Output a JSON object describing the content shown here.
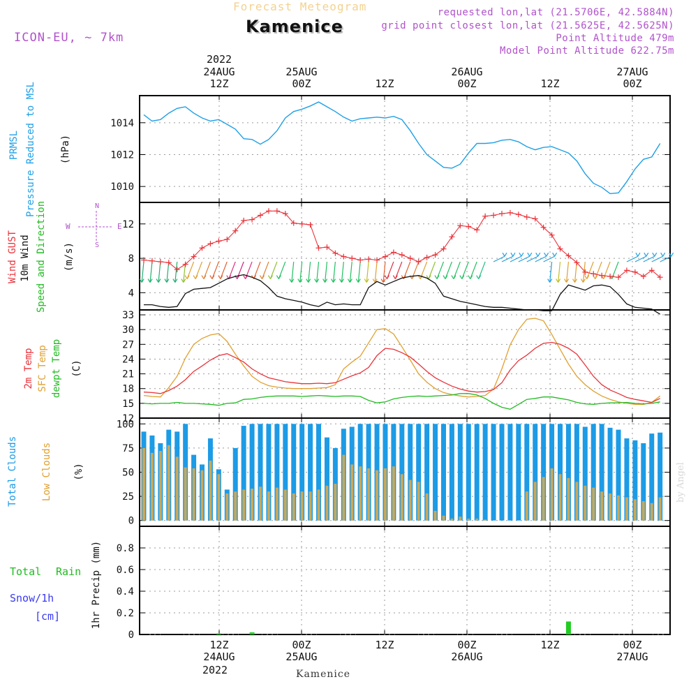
{
  "header": {
    "title": "Kamenice",
    "faded_title": "Forecast Meteogram",
    "model": "ICON-EU, ~ 7km",
    "requested": "requested lon,lat (21.5706E, 42.5884N)",
    "grid": "grid point closest lon,lat (21.5625E, 42.5625N)",
    "point_alt": "Point Altitude 479m",
    "model_alt": "Model Point Altitude 622.75m"
  },
  "top_axis": {
    "year": "2022",
    "labels": [
      {
        "top": "24AUG",
        "bottom": "12Z"
      },
      {
        "top": "25AUG",
        "bottom": "00Z"
      },
      {
        "top": "",
        "bottom": "12Z"
      },
      {
        "top": "26AUG",
        "bottom": "00Z"
      },
      {
        "top": "",
        "bottom": "12Z"
      },
      {
        "top": "27AUG",
        "bottom": "00Z"
      }
    ]
  },
  "bottom_axis": {
    "year": "2022",
    "labels": [
      {
        "top": "12Z",
        "bottom": "24AUG"
      },
      {
        "top": "00Z",
        "bottom": "25AUG"
      },
      {
        "top": "12Z",
        "bottom": ""
      },
      {
        "top": "00Z",
        "bottom": "26AUG"
      },
      {
        "top": "12Z",
        "bottom": ""
      },
      {
        "top": "00Z",
        "bottom": "27AUG"
      }
    ]
  },
  "footer": {
    "location": "Kamenice",
    "credit": "by Angel"
  },
  "panel_labels": {
    "pressure": {
      "a": "PRMSL",
      "b": "Pressure Reduced to MSL",
      "unit": "(hPa)"
    },
    "wind": {
      "a": "Wind GUST",
      "b": "10m Wind",
      "c": "Speed and Direction",
      "unit": "(m/s)",
      "compass_ns": "N",
      "compass_s": "S",
      "compass_w": "W",
      "compass_e": "E"
    },
    "temp": {
      "a": "2m Temp",
      "b": "SFC Temp",
      "c": "dewpt Temp",
      "unit": "(C)"
    },
    "clouds": {
      "a": "Total Clouds",
      "b": "Low Clouds",
      "unit": "(%)"
    },
    "precip": {
      "a": "Total",
      "b": "Rain",
      "c": "Snow/1h",
      "d": "[cm]",
      "unit": "1hr Precip (mm)"
    }
  },
  "colors": {
    "pressure": "#1ea0e6",
    "gust": "#e8333a",
    "wind": "#111111",
    "temp2m": "#e8333a",
    "sfc": "#e0a030",
    "dewpt": "#22bb22",
    "total_cloud": "#1c9be6",
    "low_cloud": "#c9a85a",
    "rain": "#22cc22",
    "snow": "#3a3aee",
    "purple": "#b152cc"
  },
  "chart_data": [
    {
      "type": "line",
      "panel": "pressure",
      "ylabel": "(hPa)",
      "ylim": [
        1009,
        1015.7
      ],
      "yticks": [
        1010,
        1012,
        1014
      ],
      "x_hours": [
        0,
        1,
        2,
        3,
        4,
        5,
        6,
        7,
        8,
        9,
        10,
        11,
        12,
        13,
        14,
        15,
        16,
        17,
        18,
        19,
        20,
        21,
        22,
        23,
        24,
        25,
        26,
        27,
        28,
        29,
        30,
        31,
        32,
        33,
        34,
        35,
        36,
        37,
        38,
        39,
        40,
        41,
        42,
        43,
        44,
        45,
        46,
        47,
        48,
        49,
        50,
        51,
        52,
        53,
        54,
        55,
        56,
        57,
        58,
        59,
        60,
        61,
        62
      ],
      "series": [
        {
          "name": "PRMSL",
          "values": [
            1014.5,
            1014.1,
            1014.2,
            1014.6,
            1014.9,
            1015.0,
            1014.6,
            1014.3,
            1014.1,
            1014.2,
            1013.9,
            1013.6,
            1013.0,
            1012.95,
            1012.65,
            1012.95,
            1013.5,
            1014.3,
            1014.7,
            1014.85,
            1015.05,
            1015.3,
            1015.0,
            1014.7,
            1014.35,
            1014.1,
            1014.25,
            1014.3,
            1014.35,
            1014.3,
            1014.4,
            1014.2,
            1013.5,
            1012.7,
            1012.0,
            1011.6,
            1011.2,
            1011.15,
            1011.4,
            1012.1,
            1012.7,
            1012.7,
            1012.75,
            1012.9,
            1012.95,
            1012.8,
            1012.5,
            1012.3,
            1012.45,
            1012.5,
            1012.3,
            1012.1,
            1011.6,
            1010.8,
            1010.2,
            1009.95,
            1009.55,
            1009.6,
            1010.3,
            1011.1,
            1011.7,
            1011.85,
            1012.7
          ]
        }
      ]
    },
    {
      "type": "line",
      "panel": "wind",
      "ylabel": "(m/s)",
      "ylim": [
        2,
        14.5
      ],
      "yticks": [
        4,
        8,
        12
      ],
      "x_hours": [
        0,
        1,
        2,
        3,
        4,
        5,
        6,
        7,
        8,
        9,
        10,
        11,
        12,
        13,
        14,
        15,
        16,
        17,
        18,
        19,
        20,
        21,
        22,
        23,
        24,
        25,
        26,
        27,
        28,
        29,
        30,
        31,
        32,
        33,
        34,
        35,
        36,
        37,
        38,
        39,
        40,
        41,
        42,
        43,
        44,
        45,
        46,
        47,
        48,
        49,
        50,
        51,
        52,
        53,
        54,
        55,
        56,
        57,
        58,
        59,
        60,
        61,
        62
      ],
      "series": [
        {
          "name": "Wind GUST",
          "values": [
            7.8,
            7.7,
            7.6,
            7.5,
            6.7,
            7.3,
            8.2,
            9.2,
            9.7,
            10.0,
            10.2,
            11.2,
            12.4,
            12.5,
            13.0,
            13.5,
            13.5,
            13.2,
            12.1,
            12.0,
            11.9,
            9.2,
            9.3,
            8.6,
            8.2,
            8.0,
            7.8,
            7.9,
            7.8,
            8.2,
            8.7,
            8.4,
            8.0,
            7.6,
            8.1,
            8.4,
            9.1,
            10.5,
            11.8,
            11.7,
            11.3,
            12.9,
            13.0,
            13.2,
            13.3,
            13.1,
            12.8,
            12.6,
            11.6,
            10.7,
            9.1,
            8.3,
            7.5,
            6.4,
            6.2,
            6.0,
            5.9,
            5.8,
            6.6,
            6.4,
            5.9,
            6.6,
            5.8
          ]
        },
        {
          "name": "10m Wind",
          "values": [
            2.6,
            2.6,
            2.4,
            2.3,
            2.4,
            3.9,
            4.4,
            4.5,
            4.6,
            5.1,
            5.6,
            5.9,
            6.1,
            5.8,
            5.4,
            4.6,
            3.6,
            3.3,
            3.1,
            2.9,
            2.6,
            2.4,
            2.9,
            2.6,
            2.7,
            2.6,
            2.6,
            4.6,
            5.3,
            4.9,
            5.3,
            5.7,
            5.9,
            6.0,
            5.7,
            5.1,
            3.6,
            3.3,
            3.0,
            2.8,
            2.6,
            2.4,
            2.3,
            2.3,
            2.2,
            2.1,
            2.0,
            2.0,
            1.9,
            1.9,
            3.8,
            4.9,
            4.6,
            4.3,
            4.8,
            4.9,
            4.7,
            3.8,
            2.7,
            2.3,
            2.2,
            2.1,
            1.5
          ]
        }
      ],
      "direction_note": "arrows show wind direction; colored by speed"
    },
    {
      "type": "line",
      "panel": "temp",
      "ylabel": "(C)",
      "ylim": [
        12,
        34
      ],
      "yticks": [
        12,
        15,
        18,
        21,
        24,
        27,
        30,
        33
      ],
      "x_hours": [
        0,
        1,
        2,
        3,
        4,
        5,
        6,
        7,
        8,
        9,
        10,
        11,
        12,
        13,
        14,
        15,
        16,
        17,
        18,
        19,
        20,
        21,
        22,
        23,
        24,
        25,
        26,
        27,
        28,
        29,
        30,
        31,
        32,
        33,
        34,
        35,
        36,
        37,
        38,
        39,
        40,
        41,
        42,
        43,
        44,
        45,
        46,
        47,
        48,
        49,
        50,
        51,
        52,
        53,
        54,
        55,
        56,
        57,
        58,
        59,
        60,
        61,
        62
      ],
      "series": [
        {
          "name": "2m Temp",
          "values": [
            17.3,
            17.2,
            17.0,
            17.6,
            18.5,
            19.8,
            21.5,
            22.6,
            23.8,
            24.7,
            25.1,
            24.3,
            23.4,
            22.0,
            21.0,
            20.2,
            19.8,
            19.4,
            19.2,
            19.0,
            19.0,
            19.1,
            19.0,
            19.2,
            19.9,
            20.6,
            21.2,
            22.3,
            24.7,
            26.2,
            26.0,
            25.3,
            24.4,
            23.0,
            21.5,
            20.2,
            19.3,
            18.5,
            17.9,
            17.5,
            17.3,
            17.4,
            17.8,
            19.2,
            21.8,
            23.7,
            24.8,
            26.2,
            27.2,
            27.4,
            27.0,
            26.2,
            25.0,
            22.8,
            20.5,
            18.8,
            17.7,
            17.0,
            16.2,
            15.8,
            15.5,
            15.2,
            16.0
          ]
        },
        {
          "name": "SFC Temp",
          "values": [
            16.6,
            16.4,
            16.3,
            18.2,
            20.5,
            24.2,
            27.0,
            28.2,
            28.9,
            29.2,
            27.6,
            25.0,
            22.6,
            20.5,
            19.3,
            18.6,
            18.3,
            18.1,
            18.0,
            18.0,
            18.0,
            18.1,
            18.2,
            18.8,
            22.0,
            23.4,
            24.6,
            27.3,
            30.0,
            30.2,
            29.1,
            26.5,
            23.8,
            21.0,
            19.3,
            18.0,
            17.2,
            16.8,
            16.5,
            16.3,
            16.4,
            16.6,
            17.9,
            22.0,
            26.9,
            30.0,
            32.1,
            32.3,
            31.8,
            29.0,
            26.0,
            23.0,
            20.5,
            18.8,
            17.5,
            16.5,
            15.8,
            15.3,
            15.0,
            14.8,
            14.8,
            15.2,
            16.5
          ]
        },
        {
          "name": "dewpt Temp",
          "values": [
            15.0,
            14.9,
            15.0,
            15.0,
            15.2,
            15.0,
            15.0,
            14.9,
            14.8,
            14.6,
            15.0,
            15.1,
            15.8,
            15.9,
            16.2,
            16.4,
            16.5,
            16.5,
            16.5,
            16.4,
            16.5,
            16.6,
            16.5,
            16.4,
            16.5,
            16.5,
            16.4,
            15.6,
            15.1,
            15.3,
            15.9,
            16.2,
            16.4,
            16.5,
            16.4,
            16.5,
            16.6,
            16.7,
            17.0,
            17.0,
            16.7,
            16.0,
            15.0,
            14.2,
            13.8,
            14.8,
            15.8,
            16.0,
            16.3,
            16.3,
            16.0,
            15.7,
            15.2,
            14.9,
            14.8,
            15.0,
            15.1,
            15.1,
            15.2,
            15.0,
            14.9,
            15.0,
            15.3
          ]
        }
      ]
    },
    {
      "type": "bar",
      "panel": "clouds",
      "ylabel": "(%)",
      "ylim": [
        -6,
        106
      ],
      "yticks": [
        0,
        25,
        50,
        75,
        100
      ],
      "x_hours": [
        0,
        1,
        2,
        3,
        4,
        5,
        6,
        7,
        8,
        9,
        10,
        11,
        12,
        13,
        14,
        15,
        16,
        17,
        18,
        19,
        20,
        21,
        22,
        23,
        24,
        25,
        26,
        27,
        28,
        29,
        30,
        31,
        32,
        33,
        34,
        35,
        36,
        37,
        38,
        39,
        40,
        41,
        42,
        43,
        44,
        45,
        46,
        47,
        48,
        49,
        50,
        51,
        52,
        53,
        54,
        55,
        56,
        57,
        58,
        59,
        60,
        61,
        62
      ],
      "series": [
        {
          "name": "Total Clouds",
          "values": [
            92,
            88,
            80,
            94,
            92,
            100,
            68,
            58,
            85,
            53,
            32,
            75,
            98,
            100,
            100,
            100,
            100,
            100,
            100,
            100,
            100,
            100,
            86,
            75,
            95,
            97,
            100,
            100,
            100,
            100,
            100,
            100,
            100,
            100,
            100,
            100,
            100,
            100,
            100,
            100,
            100,
            100,
            100,
            100,
            100,
            100,
            100,
            100,
            100,
            100,
            100,
            100,
            100,
            97,
            100,
            100,
            96,
            94,
            85,
            83,
            80,
            90,
            91
          ]
        },
        {
          "name": "Low Clouds",
          "values": [
            75,
            70,
            72,
            78,
            66,
            55,
            54,
            52,
            62,
            48,
            28,
            30,
            32,
            33,
            35,
            30,
            34,
            32,
            28,
            30,
            30,
            32,
            36,
            38,
            68,
            58,
            56,
            54,
            52,
            54,
            56,
            48,
            42,
            40,
            28,
            10,
            5,
            2,
            4,
            2,
            2,
            1,
            0,
            0,
            0,
            0,
            30,
            40,
            45,
            54,
            48,
            44,
            40,
            36,
            34,
            30,
            28,
            26,
            24,
            22,
            20,
            18,
            24
          ]
        }
      ]
    },
    {
      "type": "bar",
      "panel": "precip",
      "ylabel": "1hr Precip (mm)",
      "ylim": [
        0,
        1.0
      ],
      "yticks": [
        0,
        0.2,
        0.4,
        0.6,
        0.8
      ],
      "x_hours": [
        0,
        1,
        2,
        3,
        4,
        5,
        6,
        7,
        8,
        9,
        10,
        11,
        12,
        13,
        14,
        15,
        16,
        17,
        18,
        19,
        20,
        21,
        22,
        23,
        24,
        25,
        26,
        27,
        28,
        29,
        30,
        31,
        32,
        33,
        34,
        35,
        36,
        37,
        38,
        39,
        40,
        41,
        42,
        43,
        44,
        45,
        46,
        47,
        48,
        49,
        50,
        51,
        52,
        53,
        54,
        55,
        56,
        57,
        58,
        59,
        60,
        61,
        62
      ],
      "series": [
        {
          "name": "Total Rain",
          "values": [
            0,
            0,
            0,
            0,
            0,
            0,
            0,
            0,
            0,
            0.01,
            0,
            0,
            0,
            0.02,
            0,
            0,
            0,
            0,
            0,
            0,
            0,
            0,
            0,
            0,
            0,
            0,
            0,
            0,
            0,
            0,
            0,
            0,
            0,
            0,
            0,
            0,
            0,
            0,
            0,
            0,
            0,
            0,
            0,
            0,
            0,
            0,
            0,
            0,
            0,
            0,
            0,
            0.12,
            0,
            0,
            0,
            0,
            0,
            0,
            0,
            0,
            0,
            0,
            0
          ]
        }
      ]
    }
  ]
}
